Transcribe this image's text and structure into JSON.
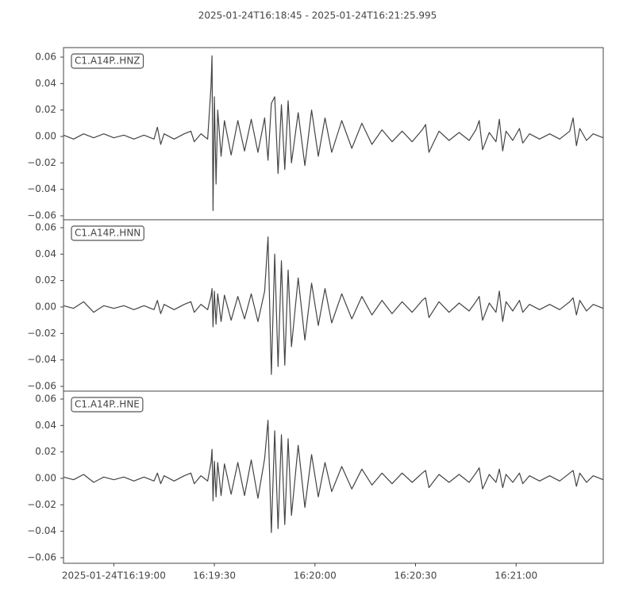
{
  "title": "2025-01-24T16:18:45  -  2025-01-24T16:21:25.995",
  "chart_data": [
    {
      "type": "line",
      "label": "C1.A14P..HNZ",
      "x": [
        "16:18:45",
        "16:18:48",
        "16:18:51",
        "16:18:54",
        "16:18:57",
        "16:19:00",
        "16:19:03",
        "16:19:06",
        "16:19:09",
        "16:19:12",
        "16:19:13",
        "16:19:14",
        "16:19:15",
        "16:19:18",
        "16:19:21",
        "16:19:23",
        "16:19:24",
        "16:19:26",
        "16:19:28",
        "16:19:29",
        "16:19:29.3",
        "16:19:29.6",
        "16:19:30",
        "16:19:30.5",
        "16:19:31",
        "16:19:32",
        "16:19:33",
        "16:19:35",
        "16:19:37",
        "16:19:39",
        "16:19:41",
        "16:19:43",
        "16:19:45",
        "16:19:46",
        "16:19:47",
        "16:19:48",
        "16:19:49",
        "16:19:50",
        "16:19:51",
        "16:19:52",
        "16:19:53",
        "16:19:55",
        "16:19:57",
        "16:19:59",
        "16:20:01",
        "16:20:03",
        "16:20:05",
        "16:20:08",
        "16:20:11",
        "16:20:14",
        "16:20:17",
        "16:20:20",
        "16:20:23",
        "16:20:26",
        "16:20:29",
        "16:20:32",
        "16:20:33",
        "16:20:34",
        "16:20:37",
        "16:20:40",
        "16:20:43",
        "16:20:46",
        "16:20:48",
        "16:20:49",
        "16:20:50",
        "16:20:52",
        "16:20:54",
        "16:20:55",
        "16:20:56",
        "16:20:57",
        "16:20:59",
        "16:21:01",
        "16:21:02",
        "16:21:04",
        "16:21:07",
        "16:21:10",
        "16:21:13",
        "16:21:16",
        "16:21:17",
        "16:21:18",
        "16:21:19",
        "16:21:21",
        "16:21:23",
        "16:21:25.995"
      ],
      "series": [
        {
          "color": "#444444",
          "values": [
            0.001,
            -0.002,
            0.002,
            -0.001,
            0.002,
            -0.001,
            0.001,
            -0.002,
            0.001,
            -0.002,
            0.007,
            -0.006,
            0.002,
            -0.002,
            0.002,
            0.004,
            -0.004,
            0.002,
            -0.002,
            0.038,
            0.061,
            -0.056,
            0.03,
            -0.036,
            0.02,
            -0.015,
            0.012,
            -0.014,
            0.012,
            -0.011,
            0.013,
            -0.012,
            0.014,
            -0.018,
            0.025,
            0.03,
            -0.028,
            0.024,
            -0.025,
            0.027,
            -0.02,
            0.018,
            -0.022,
            0.02,
            -0.015,
            0.014,
            -0.012,
            0.012,
            -0.009,
            0.01,
            -0.006,
            0.005,
            -0.004,
            0.004,
            -0.004,
            0.005,
            0.009,
            -0.012,
            0.004,
            -0.003,
            0.003,
            -0.003,
            0.005,
            0.012,
            -0.01,
            0.003,
            -0.004,
            0.013,
            -0.011,
            0.004,
            -0.003,
            0.006,
            -0.005,
            0.002,
            -0.002,
            0.002,
            -0.002,
            0.004,
            0.014,
            -0.007,
            0.006,
            -0.003,
            0.002,
            -0.001
          ]
        }
      ],
      "xlim": [
        "16:18:45",
        "16:21:25.995"
      ],
      "ylim": [
        -0.063,
        0.0672
      ],
      "yticks": [
        {
          "value": -0.06,
          "label": "−0.06"
        },
        {
          "value": -0.04,
          "label": "−0.04"
        },
        {
          "value": -0.02,
          "label": "−0.02"
        },
        {
          "value": 0,
          "label": "0.00"
        },
        0.02,
        0.04,
        0.06
      ]
    },
    {
      "type": "line",
      "label": "C1.A14P..HNN",
      "x": [
        "16:18:45",
        "16:18:48",
        "16:18:51",
        "16:18:54",
        "16:18:57",
        "16:19:00",
        "16:19:03",
        "16:19:06",
        "16:19:09",
        "16:19:12",
        "16:19:13",
        "16:19:14",
        "16:19:15",
        "16:19:18",
        "16:19:21",
        "16:19:23",
        "16:19:24",
        "16:19:26",
        "16:19:28",
        "16:19:29",
        "16:19:29.3",
        "16:19:29.6",
        "16:19:30",
        "16:19:30.5",
        "16:19:31",
        "16:19:32",
        "16:19:33",
        "16:19:35",
        "16:19:37",
        "16:19:39",
        "16:19:41",
        "16:19:43",
        "16:19:45",
        "16:19:46",
        "16:19:47",
        "16:19:48",
        "16:19:49",
        "16:19:50",
        "16:19:51",
        "16:19:52",
        "16:19:53",
        "16:19:55",
        "16:19:57",
        "16:19:59",
        "16:20:01",
        "16:20:03",
        "16:20:05",
        "16:20:08",
        "16:20:11",
        "16:20:14",
        "16:20:17",
        "16:20:20",
        "16:20:23",
        "16:20:26",
        "16:20:29",
        "16:20:32",
        "16:20:33",
        "16:20:34",
        "16:20:37",
        "16:20:40",
        "16:20:43",
        "16:20:46",
        "16:20:48",
        "16:20:49",
        "16:20:50",
        "16:20:52",
        "16:20:54",
        "16:20:55",
        "16:20:56",
        "16:20:57",
        "16:20:59",
        "16:21:01",
        "16:21:02",
        "16:21:04",
        "16:21:07",
        "16:21:10",
        "16:21:13",
        "16:21:16",
        "16:21:17",
        "16:21:18",
        "16:21:19",
        "16:21:21",
        "16:21:23",
        "16:21:25.995"
      ],
      "series": [
        {
          "color": "#444444",
          "values": [
            0.001,
            -0.001,
            0.004,
            -0.004,
            0.001,
            -0.001,
            0.001,
            -0.002,
            0.001,
            -0.002,
            0.005,
            -0.005,
            0.002,
            -0.002,
            0.002,
            0.004,
            -0.004,
            0.002,
            -0.002,
            0.008,
            0.014,
            -0.015,
            0.012,
            -0.013,
            0.01,
            -0.011,
            0.009,
            -0.01,
            0.008,
            -0.009,
            0.01,
            -0.011,
            0.012,
            0.053,
            -0.051,
            0.04,
            -0.045,
            0.035,
            -0.044,
            0.028,
            -0.03,
            0.022,
            -0.025,
            0.018,
            -0.014,
            0.014,
            -0.012,
            0.01,
            -0.009,
            0.008,
            -0.006,
            0.005,
            -0.005,
            0.004,
            -0.004,
            0.005,
            0.007,
            -0.008,
            0.004,
            -0.004,
            0.003,
            -0.003,
            0.004,
            0.008,
            -0.01,
            0.003,
            -0.004,
            0.012,
            -0.011,
            0.004,
            -0.003,
            0.005,
            -0.004,
            0.002,
            -0.002,
            0.002,
            -0.002,
            0.004,
            0.007,
            -0.006,
            0.005,
            -0.003,
            0.002,
            -0.001
          ]
        }
      ],
      "xlim": [
        "16:18:45",
        "16:21:25.995"
      ],
      "ylim": [
        -0.0636,
        0.066
      ],
      "yticks": [
        {
          "value": -0.06,
          "label": "−0.06"
        },
        {
          "value": -0.04,
          "label": "−0.04"
        },
        {
          "value": -0.02,
          "label": "−0.02"
        },
        {
          "value": 0,
          "label": "0.00"
        },
        0.02,
        0.04,
        0.06
      ]
    },
    {
      "type": "line",
      "label": "C1.A14P..HNE",
      "x": [
        "16:18:45",
        "16:18:48",
        "16:18:51",
        "16:18:54",
        "16:18:57",
        "16:19:00",
        "16:19:03",
        "16:19:06",
        "16:19:09",
        "16:19:12",
        "16:19:13",
        "16:19:14",
        "16:19:15",
        "16:19:18",
        "16:19:21",
        "16:19:23",
        "16:19:24",
        "16:19:26",
        "16:19:28",
        "16:19:29",
        "16:19:29.3",
        "16:19:29.6",
        "16:19:30",
        "16:19:30.5",
        "16:19:31",
        "16:19:32",
        "16:19:33",
        "16:19:35",
        "16:19:37",
        "16:19:39",
        "16:19:41",
        "16:19:43",
        "16:19:45",
        "16:19:46",
        "16:19:47",
        "16:19:48",
        "16:19:49",
        "16:19:50",
        "16:19:51",
        "16:19:52",
        "16:19:53",
        "16:19:55",
        "16:19:57",
        "16:19:59",
        "16:20:01",
        "16:20:03",
        "16:20:05",
        "16:20:08",
        "16:20:11",
        "16:20:14",
        "16:20:17",
        "16:20:20",
        "16:20:23",
        "16:20:26",
        "16:20:29",
        "16:20:32",
        "16:20:33",
        "16:20:34",
        "16:20:37",
        "16:20:40",
        "16:20:43",
        "16:20:46",
        "16:20:48",
        "16:20:49",
        "16:20:50",
        "16:20:52",
        "16:20:54",
        "16:20:55",
        "16:20:56",
        "16:20:57",
        "16:20:59",
        "16:21:01",
        "16:21:02",
        "16:21:04",
        "16:21:07",
        "16:21:10",
        "16:21:13",
        "16:21:16",
        "16:21:17",
        "16:21:18",
        "16:21:19",
        "16:21:21",
        "16:21:23",
        "16:21:25.995"
      ],
      "series": [
        {
          "color": "#444444",
          "values": [
            0.001,
            -0.001,
            0.003,
            -0.003,
            0.001,
            -0.001,
            0.001,
            -0.002,
            0.001,
            -0.002,
            0.004,
            -0.004,
            0.002,
            -0.002,
            0.002,
            0.004,
            -0.004,
            0.002,
            -0.002,
            0.012,
            0.022,
            -0.017,
            0.013,
            -0.014,
            0.012,
            -0.013,
            0.011,
            -0.012,
            0.012,
            -0.013,
            0.014,
            -0.015,
            0.015,
            0.044,
            -0.041,
            0.036,
            -0.038,
            0.033,
            -0.035,
            0.03,
            -0.028,
            0.025,
            -0.022,
            0.018,
            -0.014,
            0.012,
            -0.01,
            0.009,
            -0.008,
            0.007,
            -0.005,
            0.004,
            -0.004,
            0.004,
            -0.003,
            0.004,
            0.006,
            -0.007,
            0.003,
            -0.003,
            0.003,
            -0.003,
            0.004,
            0.008,
            -0.008,
            0.003,
            -0.003,
            0.007,
            -0.007,
            0.003,
            -0.003,
            0.004,
            -0.004,
            0.002,
            -0.002,
            0.002,
            -0.002,
            0.004,
            0.006,
            -0.006,
            0.004,
            -0.003,
            0.002,
            -0.001
          ]
        }
      ],
      "xlim": [
        "16:18:45",
        "16:21:25.995"
      ],
      "ylim": [
        -0.0642,
        0.066
      ],
      "yticks": [
        {
          "value": -0.06,
          "label": "−0.06"
        },
        {
          "value": -0.04,
          "label": "−0.04"
        },
        {
          "value": -0.02,
          "label": "−0.02"
        },
        {
          "value": 0,
          "label": "0.00"
        },
        0.02,
        0.04,
        0.06
      ],
      "xticks": [
        "2025-01-24T16:19:00",
        {
          "value": "16:19:30",
          "label": "16:19:30"
        },
        {
          "value": "16:20:00",
          "label": "16:20:00"
        },
        {
          "value": "16:20:30",
          "label": "16:20:30"
        },
        {
          "value": "16:21:00",
          "label": "16:21:00"
        }
      ]
    }
  ]
}
